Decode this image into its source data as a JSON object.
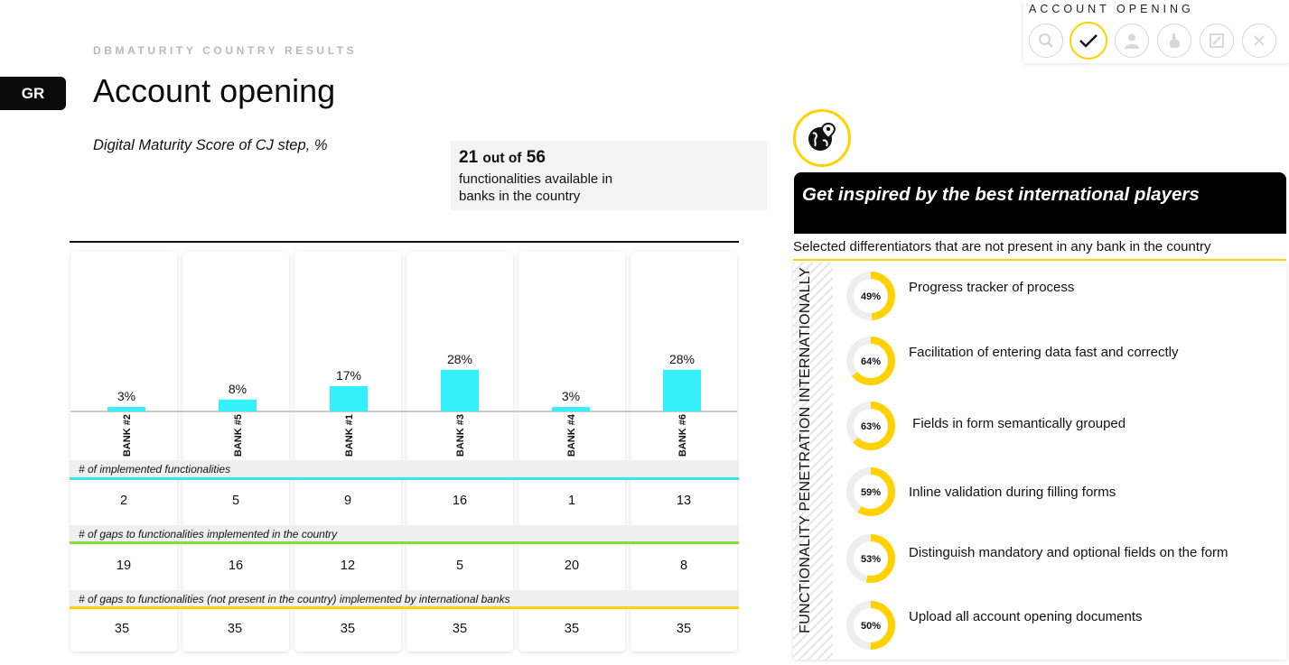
{
  "header": {
    "subtitle": "DBMATURITY COUNTRY RESULTS",
    "country_code": "GR",
    "title": "Account opening",
    "score_label": "Digital Maturity Score of CJ step, %"
  },
  "functionalities": {
    "available": "21",
    "out_of": "out of",
    "total": "56",
    "description": "functionalities available in banks in the country"
  },
  "step_nav": {
    "title": "ACCOUNT OPENING",
    "icons": [
      {
        "name": "search-icon",
        "active": false
      },
      {
        "name": "checkmark-icon",
        "active": true
      },
      {
        "name": "person-icon",
        "active": false
      },
      {
        "name": "hand-touch-icon",
        "active": false
      },
      {
        "name": "screen-icon",
        "active": false
      },
      {
        "name": "close-icon",
        "active": false
      }
    ]
  },
  "chart_data": {
    "type": "bar",
    "categories": [
      "BANK #2",
      "BANK #5",
      "BANK #1",
      "BANK #3",
      "BANK #4",
      "BANK #6"
    ],
    "values": [
      3,
      8,
      17,
      28,
      3,
      28
    ],
    "value_labels": [
      "3%",
      "8%",
      "17%",
      "28%",
      "3%",
      "28%"
    ],
    "ylim": [
      0,
      100
    ],
    "bar_color": "#35f0fb",
    "grid": false
  },
  "table": {
    "rows": [
      {
        "label": "# of implemented functionalities",
        "color": "#35e4f0",
        "values": [
          "2",
          "5",
          "9",
          "16",
          "1",
          "13"
        ]
      },
      {
        "label": "# of gaps to functionalities implemented in the country",
        "color": "#7fe03a",
        "values": [
          "19",
          "16",
          "12",
          "5",
          "20",
          "8"
        ]
      },
      {
        "label": "# of gaps to functionalities (not present in the country) implemented by international banks",
        "color": "#ffd200",
        "values": [
          "35",
          "35",
          "35",
          "35",
          "35",
          "35"
        ]
      }
    ]
  },
  "inspire": {
    "title": "Get inspired by the best international players",
    "differentiators_label": "Selected differentiators that are not present in any bank in the country",
    "axis_label": "FUNCTIONALITY PENETRATION INTERNATIONALLY",
    "accent_color": "#ffd200",
    "items": [
      {
        "value": 49,
        "label_pct": "49%",
        "text": "Progress tracker of process"
      },
      {
        "value": 64,
        "label_pct": "64%",
        "text": "Facilitation of entering data fast and correctly"
      },
      {
        "value": 63,
        "label_pct": "63%",
        "text": " Fields in form semantically grouped"
      },
      {
        "value": 59,
        "label_pct": "59%",
        "text": "Inline validation during filling forms"
      },
      {
        "value": 53,
        "label_pct": "53%",
        "text": "Distinguish mandatory and optional fields on the form"
      },
      {
        "value": 50,
        "label_pct": "50%",
        "text": "Upload all account opening documents"
      }
    ]
  }
}
